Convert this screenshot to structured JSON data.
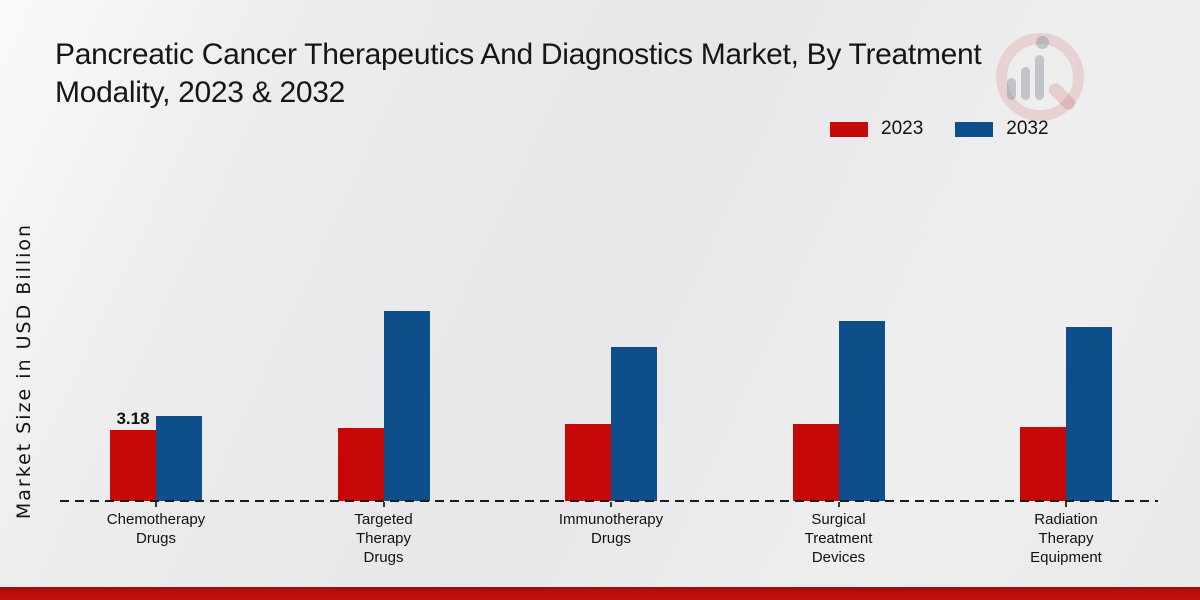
{
  "title": {
    "lines": [
      "Pancreatic Cancer Therapeutics And Diagnostics Market, By Treatment",
      "Modality, 2023 & 2032"
    ]
  },
  "y_axis": {
    "label": "Market Size in USD Billion"
  },
  "legend": {
    "items": [
      {
        "label": "2023",
        "color": "#c50808"
      },
      {
        "label": "2032",
        "color": "#0d4e8b"
      }
    ]
  },
  "chart_data": {
    "type": "bar",
    "title": "Pancreatic Cancer Therapeutics And Diagnostics Market, By Treatment Modality, 2023 & 2032",
    "ylabel": "Market Size in USD Billion",
    "xlabel": "",
    "grid": false,
    "legend_position": "top-right",
    "baseline_style": "dashed-zero-line",
    "categories": [
      "Chemotherapy Drugs",
      "Targeted Therapy Drugs",
      "Immunotherapy Drugs",
      "Surgical Treatment Devices",
      "Radiation Therapy Equipment"
    ],
    "category_label_lines": [
      [
        "Chemotherapy",
        "Drugs"
      ],
      [
        "Targeted",
        "Therapy",
        "Drugs"
      ],
      [
        "Immunotherapy",
        "Drugs"
      ],
      [
        "Surgical",
        "Treatment",
        "Devices"
      ],
      [
        "Radiation",
        "Therapy",
        "Equipment"
      ]
    ],
    "series": [
      {
        "name": "2023",
        "color": "#c50808",
        "values": [
          3.18,
          3.27,
          3.45,
          3.45,
          3.31
        ]
      },
      {
        "name": "2032",
        "color": "#0d4e8b",
        "values": [
          3.81,
          8.51,
          6.9,
          8.06,
          7.79
        ]
      }
    ],
    "data_labels": [
      {
        "series_index": 0,
        "category_index": 0,
        "text": "3.18"
      }
    ]
  },
  "footer": {
    "bar_color": "#b50d0d"
  }
}
